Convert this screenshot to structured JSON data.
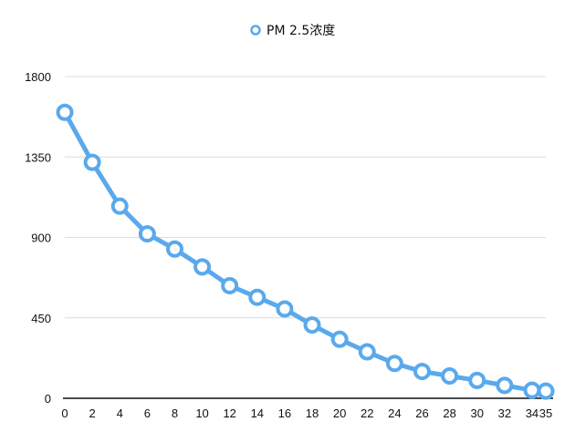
{
  "chart_data": {
    "type": "line",
    "legend": {
      "label": "PM 2.5浓度",
      "placement": "top-center"
    },
    "series": [
      {
        "name": "PM 2.5浓度",
        "color": "#5aa9ec",
        "x": [
          0,
          2,
          4,
          6,
          8,
          10,
          12,
          14,
          16,
          18,
          20,
          22,
          24,
          26,
          28,
          30,
          32,
          34,
          35
        ],
        "values": [
          1600,
          1320,
          1075,
          920,
          835,
          735,
          630,
          565,
          500,
          410,
          330,
          260,
          195,
          150,
          125,
          100,
          72,
          45,
          40
        ]
      }
    ],
    "x_tick_labels": [
      "0",
      "2",
      "4",
      "6",
      "8",
      "10",
      "12",
      "14",
      "16",
      "18",
      "20",
      "22",
      "24",
      "26",
      "28",
      "30",
      "32",
      "34",
      "35"
    ],
    "y_tick_labels": [
      "0",
      "450",
      "900",
      "1350",
      "1800"
    ],
    "ylim": [
      0,
      1800
    ],
    "grid": true,
    "xlabel": "",
    "ylabel": ""
  }
}
